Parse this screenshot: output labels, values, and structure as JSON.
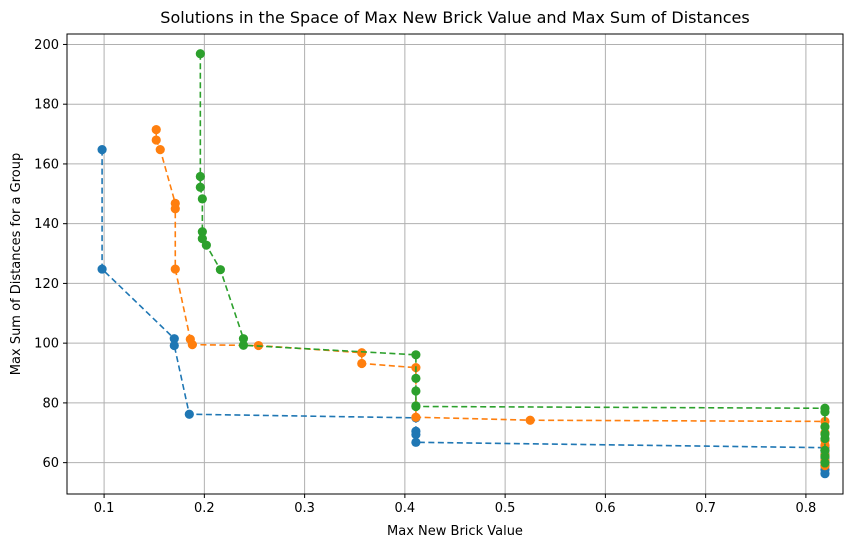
{
  "chart_data": {
    "type": "line",
    "title": "Solutions in the Space of Max New Brick Value and Max Sum of Distances",
    "xlabel": "Max New Brick Value",
    "ylabel": "Max Sum of Distances for a Group",
    "xlim": [
      0.063,
      0.837
    ],
    "ylim": [
      49.5,
      203.5
    ],
    "xticks": [
      0.1,
      0.2,
      0.3,
      0.4,
      0.5,
      0.6,
      0.7,
      0.8
    ],
    "xtick_labels": [
      "0.1",
      "0.2",
      "0.3",
      "0.4",
      "0.5",
      "0.6",
      "0.7",
      "0.8"
    ],
    "yticks": [
      60,
      80,
      100,
      120,
      140,
      160,
      180,
      200
    ],
    "ytick_labels": [
      "60",
      "80",
      "100",
      "120",
      "140",
      "160",
      "180",
      "200"
    ],
    "grid": true,
    "line_style": "dashed",
    "markers": "circle",
    "series": [
      {
        "color": "#1f77b4",
        "x": [
          0.098,
          0.098,
          0.17,
          0.17,
          0.185,
          0.411,
          0.411,
          0.411,
          0.411,
          0.819,
          0.819,
          0.819,
          0.819,
          0.819,
          0.819,
          0.819,
          0.819
        ],
        "y": [
          164.8,
          124.8,
          101.5,
          99.2,
          76.2,
          75.0,
          70.5,
          69.4,
          66.8,
          65.0,
          64.0,
          62.8,
          61.6,
          60.3,
          58.9,
          57.6,
          56.3
        ]
      },
      {
        "color": "#ff7f0e",
        "x": [
          0.152,
          0.152,
          0.156,
          0.171,
          0.171,
          0.171,
          0.186,
          0.188,
          0.254,
          0.357,
          0.357,
          0.411,
          0.411,
          0.525,
          0.819,
          0.819,
          0.819,
          0.819,
          0.819,
          0.819,
          0.819,
          0.819
        ],
        "y": [
          171.5,
          168.0,
          164.8,
          146.8,
          145.0,
          124.8,
          101.3,
          99.5,
          99.2,
          96.8,
          93.2,
          91.8,
          75.2,
          74.2,
          73.8,
          70.0,
          67.5,
          65.8,
          64.2,
          62.5,
          60.7,
          59.0
        ]
      },
      {
        "color": "#2ca02c",
        "x": [
          0.196,
          0.196,
          0.196,
          0.198,
          0.198,
          0.198,
          0.202,
          0.216,
          0.239,
          0.239,
          0.411,
          0.411,
          0.411,
          0.411,
          0.411,
          0.819,
          0.819,
          0.819,
          0.819,
          0.819,
          0.819,
          0.819,
          0.819
        ],
        "y": [
          196.9,
          155.8,
          152.2,
          148.3,
          137.3,
          135.0,
          132.8,
          124.6,
          101.5,
          99.3,
          96.1,
          88.2,
          84.0,
          79.0,
          78.8,
          78.2,
          77.0,
          72.0,
          69.6,
          68.1,
          64.1,
          62.1,
          59.9
        ]
      }
    ]
  }
}
